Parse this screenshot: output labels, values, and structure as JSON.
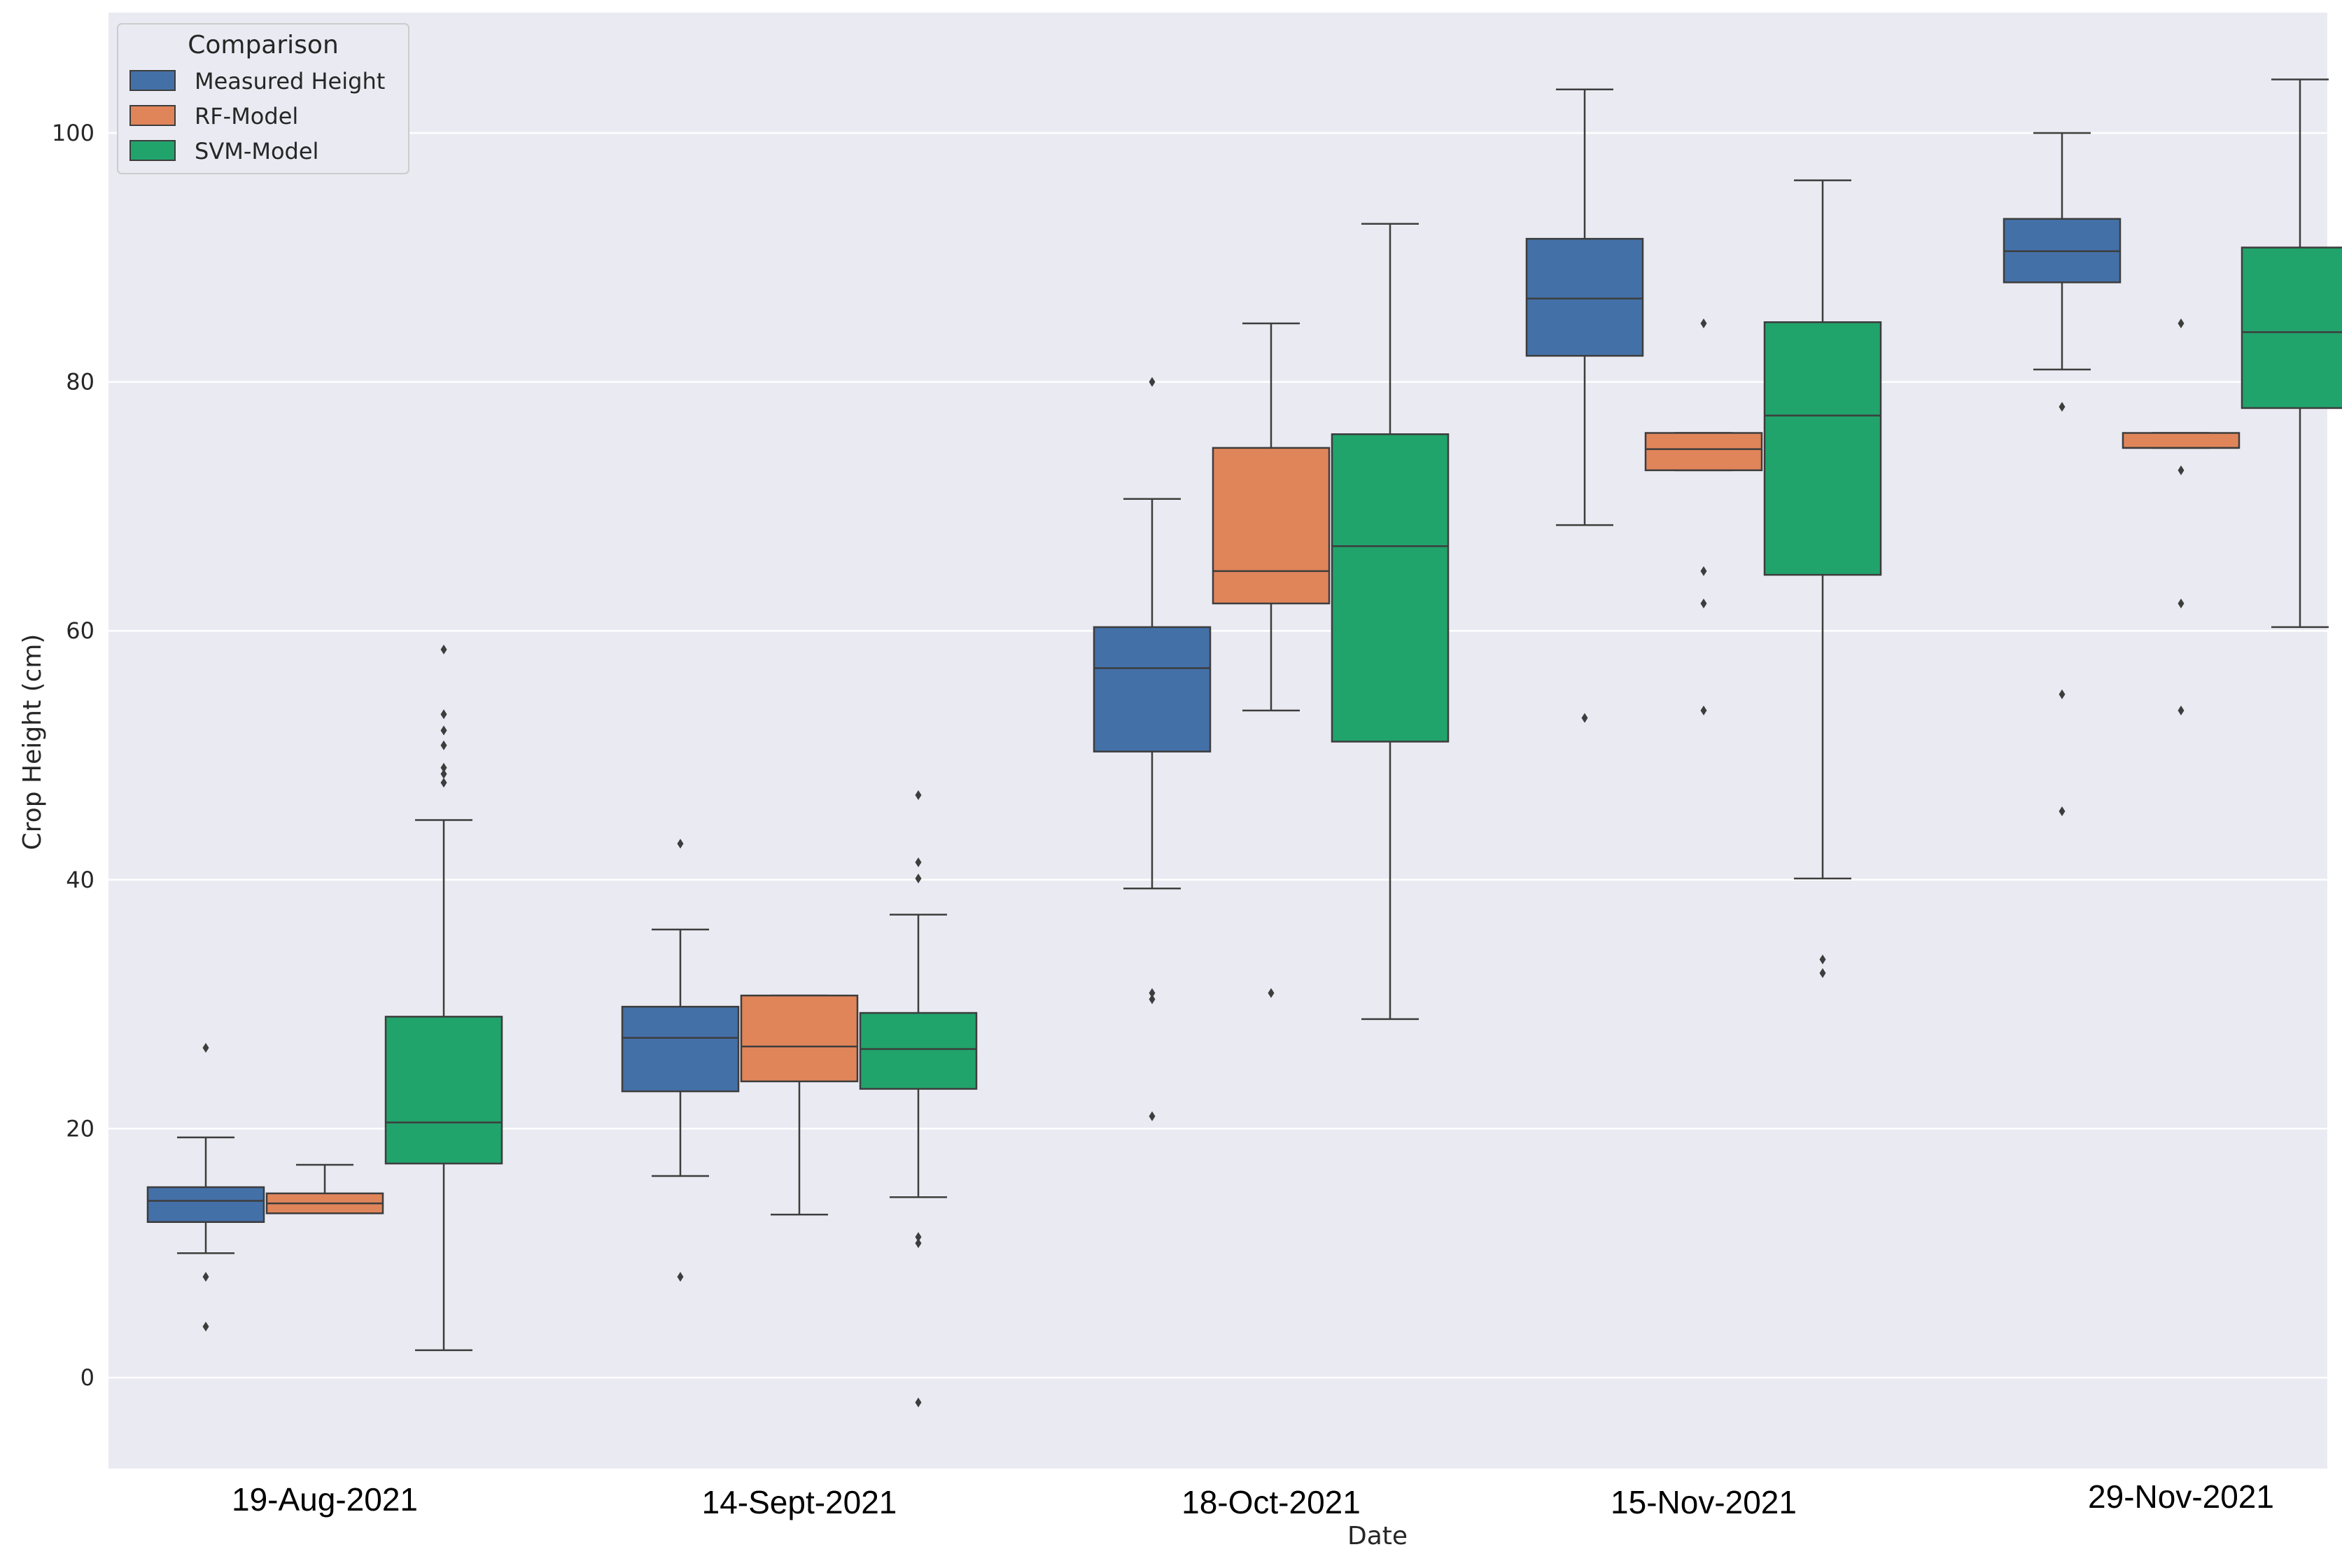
{
  "chart_data": {
    "type": "box",
    "title": "",
    "xlabel": "Date",
    "ylabel": "Crop Height (cm)",
    "ylim": [
      -7,
      109
    ],
    "yticks": [
      0,
      20,
      40,
      60,
      80,
      100
    ],
    "grid": true,
    "legend": {
      "title": "Comparison",
      "position": "top-left"
    },
    "categories": [
      "19-Aug-2021",
      "14-Sept-2021",
      "18-Oct-2021",
      "15-Nov-2021",
      "29-Nov-2021"
    ],
    "series": [
      {
        "name": "Measured Height",
        "color": "#4470a8",
        "boxes": [
          {
            "whislo": 10.0,
            "q1": 12.5,
            "med": 14.2,
            "q3": 15.3,
            "whishi": 19.3,
            "fliers": [
              26.5,
              8.1,
              4.1
            ]
          },
          {
            "whislo": 16.2,
            "q1": 23.0,
            "med": 27.3,
            "q3": 29.8,
            "whishi": 36.0,
            "fliers": [
              42.9,
              8.1
            ]
          },
          {
            "whislo": 39.3,
            "q1": 50.3,
            "med": 57.0,
            "q3": 60.3,
            "whishi": 70.6,
            "fliers": [
              80.0,
              30.9,
              30.4,
              21.0
            ]
          },
          {
            "whislo": 68.5,
            "q1": 82.1,
            "med": 86.7,
            "q3": 91.5,
            "whishi": 103.5,
            "fliers": [
              53.0
            ]
          },
          {
            "whislo": 81.0,
            "q1": 88.0,
            "med": 90.5,
            "q3": 93.1,
            "whishi": 100.0,
            "fliers": [
              78.0,
              54.9,
              45.5
            ]
          }
        ]
      },
      {
        "name": "RF-Model",
        "color": "#e0855a",
        "boxes": [
          {
            "whislo": 13.2,
            "q1": 13.2,
            "med": 14.0,
            "q3": 14.8,
            "whishi": 17.1,
            "fliers": []
          },
          {
            "whislo": 13.1,
            "q1": 23.8,
            "med": 26.6,
            "q3": 30.7,
            "whishi": 30.7,
            "fliers": []
          },
          {
            "whislo": 53.6,
            "q1": 62.2,
            "med": 64.8,
            "q3": 74.7,
            "whishi": 84.7,
            "fliers": [
              30.9
            ]
          },
          {
            "whislo": 72.9,
            "q1": 72.9,
            "med": 74.6,
            "q3": 75.9,
            "whishi": 75.9,
            "fliers": [
              84.7,
              64.8,
              62.2,
              53.6
            ]
          },
          {
            "whislo": 74.7,
            "q1": 74.7,
            "med": 74.7,
            "q3": 75.9,
            "whishi": 75.9,
            "fliers": [
              84.7,
              72.9,
              62.2,
              53.6
            ]
          }
        ]
      },
      {
        "name": "SVM-Model",
        "color": "#21a36c",
        "boxes": [
          {
            "whislo": 2.2,
            "q1": 17.2,
            "med": 20.5,
            "q3": 29.0,
            "whishi": 44.8,
            "fliers": [
              58.5,
              53.3,
              52.0,
              50.8,
              49.0,
              48.5,
              47.8
            ]
          },
          {
            "whislo": 14.5,
            "q1": 23.2,
            "med": 26.4,
            "q3": 29.3,
            "whishi": 37.2,
            "fliers": [
              46.8,
              41.4,
              40.1,
              11.3,
              10.8,
              -2.0
            ]
          },
          {
            "whislo": 28.8,
            "q1": 51.1,
            "med": 66.8,
            "q3": 75.8,
            "whishi": 92.7,
            "fliers": []
          },
          {
            "whislo": 40.1,
            "q1": 64.5,
            "med": 77.3,
            "q3": 84.8,
            "whishi": 96.2,
            "fliers": [
              33.6,
              32.5
            ]
          },
          {
            "whislo": 60.3,
            "q1": 77.9,
            "med": 84.0,
            "q3": 90.8,
            "whishi": 104.3,
            "fliers": []
          }
        ]
      }
    ]
  }
}
